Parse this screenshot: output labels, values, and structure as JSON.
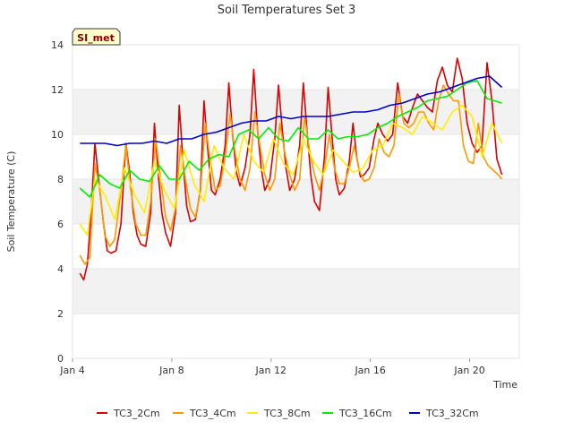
{
  "chart_data": {
    "type": "line",
    "title": "Soil Temperatures Set 3",
    "xlabel": "Time",
    "ylabel": "Soil Temperature (C)",
    "site_badge": "SI_met",
    "xlim": [
      0,
      18
    ],
    "ylim": [
      0,
      14
    ],
    "x_ticks": [
      {
        "x": 0,
        "label": "Jan 4"
      },
      {
        "x": 4,
        "label": "Jan 8"
      },
      {
        "x": 8,
        "label": "Jan 12"
      },
      {
        "x": 12,
        "label": "Jan 16"
      },
      {
        "x": 16,
        "label": "Jan 20"
      }
    ],
    "y_ticks": [
      0,
      2,
      4,
      6,
      8,
      10,
      12,
      14
    ],
    "band_color": "#f2f2f2",
    "series": [
      {
        "name": "TC3_2Cm",
        "color": "#dd0000",
        "x": [
          0.3,
          0.45,
          0.6,
          0.75,
          0.9,
          1.05,
          1.25,
          1.4,
          1.55,
          1.75,
          1.95,
          2.15,
          2.3,
          2.45,
          2.6,
          2.75,
          2.95,
          3.15,
          3.3,
          3.45,
          3.6,
          3.75,
          3.95,
          4.15,
          4.3,
          4.45,
          4.6,
          4.75,
          4.95,
          5.15,
          5.3,
          5.45,
          5.6,
          5.75,
          5.95,
          6.15,
          6.3,
          6.45,
          6.6,
          6.75,
          6.95,
          7.15,
          7.3,
          7.45,
          7.6,
          7.75,
          7.95,
          8.15,
          8.3,
          8.45,
          8.6,
          8.75,
          8.95,
          9.15,
          9.3,
          9.45,
          9.6,
          9.75,
          9.95,
          10.15,
          10.3,
          10.45,
          10.6,
          10.75,
          10.95,
          11.15,
          11.3,
          11.45,
          11.6,
          11.75,
          11.95,
          12.15,
          12.3,
          12.5,
          12.7,
          12.9,
          13.1,
          13.3,
          13.5,
          13.7,
          13.9,
          14.1,
          14.3,
          14.5,
          14.7,
          14.9,
          15.1,
          15.3,
          15.5,
          15.7,
          15.9,
          16.1,
          16.3,
          16.5,
          16.7,
          16.9,
          17.1,
          17.3
        ],
        "values": [
          3.8,
          3.5,
          4.2,
          6.5,
          9.6,
          8.0,
          6.0,
          4.8,
          4.7,
          4.8,
          6.0,
          9.6,
          8.3,
          6.5,
          5.5,
          5.1,
          5.0,
          6.5,
          10.5,
          8.3,
          6.5,
          5.6,
          5.0,
          6.5,
          11.3,
          8.8,
          6.8,
          6.1,
          6.2,
          7.5,
          11.5,
          9.3,
          7.5,
          7.3,
          8.0,
          9.5,
          12.3,
          10.0,
          8.3,
          7.7,
          8.5,
          10.0,
          12.9,
          10.3,
          8.5,
          7.5,
          8.0,
          9.8,
          12.2,
          10.2,
          8.5,
          7.5,
          8.0,
          9.5,
          12.3,
          10.1,
          8.2,
          7.0,
          6.6,
          9.0,
          12.1,
          10.0,
          8.0,
          7.3,
          7.6,
          8.8,
          10.5,
          9.0,
          8.1,
          8.2,
          8.5,
          9.8,
          10.5,
          10.0,
          9.7,
          10.0,
          12.3,
          10.8,
          10.5,
          11.2,
          11.8,
          11.5,
          11.2,
          11.0,
          12.4,
          13.0,
          12.2,
          11.9,
          13.4,
          12.5,
          10.5,
          9.6,
          9.2,
          9.5,
          13.2,
          11.5,
          8.9,
          8.2
        ]
      },
      {
        "name": "TC3_4Cm",
        "color": "#ff9900",
        "x": [
          0.3,
          0.5,
          0.7,
          0.9,
          1.1,
          1.3,
          1.5,
          1.7,
          1.95,
          2.15,
          2.35,
          2.55,
          2.75,
          2.95,
          3.15,
          3.35,
          3.55,
          3.75,
          3.95,
          4.15,
          4.35,
          4.55,
          4.75,
          4.95,
          5.15,
          5.35,
          5.55,
          5.75,
          5.95,
          6.15,
          6.35,
          6.55,
          6.75,
          6.95,
          7.15,
          7.35,
          7.55,
          7.75,
          7.95,
          8.15,
          8.35,
          8.55,
          8.75,
          8.95,
          9.15,
          9.35,
          9.55,
          9.75,
          9.95,
          10.15,
          10.35,
          10.55,
          10.75,
          10.95,
          11.15,
          11.35,
          11.55,
          11.75,
          11.95,
          12.15,
          12.35,
          12.55,
          12.75,
          12.95,
          13.15,
          13.35,
          13.55,
          13.75,
          13.95,
          14.15,
          14.35,
          14.55,
          14.75,
          14.95,
          15.15,
          15.35,
          15.55,
          15.75,
          15.95,
          16.15,
          16.35,
          16.55,
          16.75,
          16.95,
          17.15,
          17.3
        ],
        "values": [
          4.6,
          4.2,
          4.5,
          8.7,
          7.5,
          5.5,
          5.0,
          5.3,
          7.5,
          9.5,
          7.5,
          6.0,
          5.5,
          5.5,
          7.0,
          9.8,
          8.0,
          6.3,
          5.7,
          6.7,
          9.5,
          8.0,
          6.7,
          6.3,
          7.4,
          10.5,
          8.8,
          7.5,
          7.7,
          9.0,
          10.9,
          9.2,
          8.0,
          7.5,
          8.5,
          11.0,
          9.5,
          8.2,
          7.5,
          8.0,
          10.5,
          9.2,
          8.2,
          7.5,
          8.0,
          10.8,
          9.3,
          8.2,
          7.5,
          8.5,
          10.0,
          8.5,
          7.8,
          7.8,
          8.5,
          9.5,
          8.4,
          7.9,
          8.0,
          8.5,
          9.8,
          9.2,
          9.0,
          9.5,
          11.8,
          10.5,
          10.3,
          10.5,
          11.0,
          11.0,
          10.5,
          10.2,
          11.5,
          12.2,
          11.8,
          11.5,
          11.5,
          9.5,
          8.8,
          8.7,
          10.5,
          9.0,
          8.6,
          8.4,
          8.2,
          8.0
        ]
      },
      {
        "name": "TC3_8Cm",
        "color": "#ffee00",
        "x": [
          0.3,
          0.6,
          0.9,
          1.3,
          1.7,
          2.1,
          2.5,
          2.9,
          3.3,
          3.7,
          4.1,
          4.5,
          4.9,
          5.3,
          5.7,
          6.1,
          6.5,
          6.9,
          7.3,
          7.7,
          8.1,
          8.5,
          8.9,
          9.3,
          9.7,
          10.1,
          10.5,
          10.9,
          11.3,
          11.7,
          12.1,
          12.5,
          12.9,
          13.3,
          13.7,
          14.1,
          14.5,
          14.9,
          15.3,
          15.7,
          16.1,
          16.5,
          16.9,
          17.3
        ],
        "values": [
          6.0,
          5.5,
          8.0,
          7.3,
          6.2,
          8.5,
          7.3,
          6.5,
          8.8,
          7.5,
          6.7,
          9.3,
          7.8,
          7.0,
          9.5,
          8.5,
          8.0,
          10.0,
          8.8,
          8.3,
          9.8,
          8.7,
          8.2,
          9.8,
          8.8,
          8.2,
          9.3,
          8.8,
          8.3,
          8.5,
          9.3,
          9.5,
          10.5,
          10.3,
          10.0,
          10.8,
          10.5,
          10.2,
          11.0,
          11.3,
          10.8,
          9.0,
          10.5,
          9.6
        ]
      },
      {
        "name": "TC3_16Cm",
        "color": "#00ee00",
        "x": [
          0.3,
          0.7,
          1.1,
          1.5,
          1.9,
          2.3,
          2.7,
          3.1,
          3.5,
          3.9,
          4.3,
          4.7,
          5.1,
          5.5,
          5.9,
          6.3,
          6.7,
          7.1,
          7.5,
          7.9,
          8.3,
          8.7,
          9.1,
          9.5,
          9.9,
          10.3,
          10.7,
          11.1,
          11.5,
          11.9,
          12.3,
          12.7,
          13.1,
          13.5,
          13.9,
          14.3,
          14.7,
          15.1,
          15.5,
          15.9,
          16.3,
          16.7,
          17.3
        ],
        "values": [
          7.6,
          7.2,
          8.2,
          7.8,
          7.6,
          8.4,
          8.0,
          7.9,
          8.6,
          8.0,
          8.0,
          8.8,
          8.4,
          8.9,
          9.1,
          9.0,
          10.0,
          10.2,
          9.8,
          10.3,
          9.8,
          9.7,
          10.3,
          9.8,
          9.8,
          10.2,
          9.8,
          9.9,
          9.9,
          10.0,
          10.3,
          10.5,
          10.8,
          11.0,
          11.2,
          11.5,
          11.6,
          11.7,
          12.0,
          12.3,
          12.4,
          11.6,
          11.4
        ]
      },
      {
        "name": "TC3_32Cm",
        "color": "#0000cc",
        "x": [
          0.3,
          0.8,
          1.3,
          1.8,
          2.3,
          2.8,
          3.3,
          3.8,
          4.3,
          4.8,
          5.3,
          5.8,
          6.3,
          6.8,
          7.3,
          7.8,
          8.3,
          8.8,
          9.3,
          9.8,
          10.3,
          10.8,
          11.3,
          11.8,
          12.3,
          12.8,
          13.3,
          13.8,
          14.3,
          14.8,
          15.3,
          15.8,
          16.3,
          16.8,
          17.3
        ],
        "values": [
          9.6,
          9.6,
          9.6,
          9.5,
          9.6,
          9.6,
          9.7,
          9.6,
          9.8,
          9.8,
          10.0,
          10.1,
          10.3,
          10.5,
          10.6,
          10.6,
          10.8,
          10.7,
          10.8,
          10.8,
          10.8,
          10.9,
          11.0,
          11.0,
          11.1,
          11.3,
          11.4,
          11.6,
          11.8,
          11.9,
          12.1,
          12.3,
          12.5,
          12.6,
          12.1
        ]
      }
    ]
  }
}
